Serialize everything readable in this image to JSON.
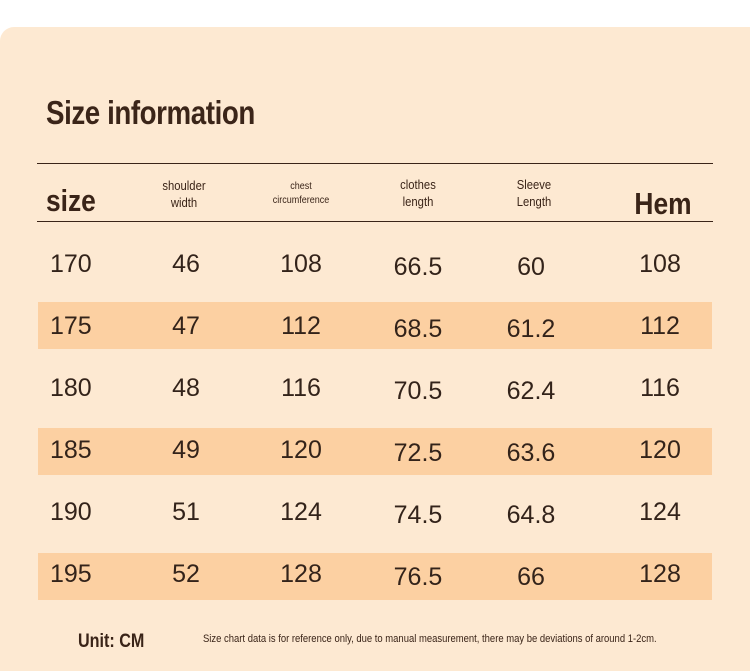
{
  "title": "Size information",
  "headers": {
    "size": "size",
    "shoulder_line1": "shoulder",
    "shoulder_line2": "width",
    "chest_line1": "chest",
    "chest_line2": "circumference",
    "clothes_line1": "clothes",
    "clothes_line2": "length",
    "sleeve_line1": "Sleeve",
    "sleeve_line2": "Length",
    "hem": "Hem"
  },
  "rows": [
    [
      "170",
      "46",
      "108",
      "66.5",
      "60",
      "108"
    ],
    [
      "175",
      "47",
      "112",
      "68.5",
      "61.2",
      "112"
    ],
    [
      "180",
      "48",
      "116",
      "70.5",
      "62.4",
      "116"
    ],
    [
      "185",
      "49",
      "120",
      "72.5",
      "63.6",
      "120"
    ],
    [
      "190",
      "51",
      "124",
      "74.5",
      "64.8",
      "124"
    ],
    [
      "195",
      "52",
      "128",
      "76.5",
      "66",
      "128"
    ]
  ],
  "footer": {
    "unit": "Unit: CM",
    "note": "Size chart data is for reference only, due to manual measurement, there may be deviations of around 1-2cm."
  },
  "colors": {
    "background": "#fde9d2",
    "stripe": "#fcd0a2",
    "text": "#3a2418"
  }
}
